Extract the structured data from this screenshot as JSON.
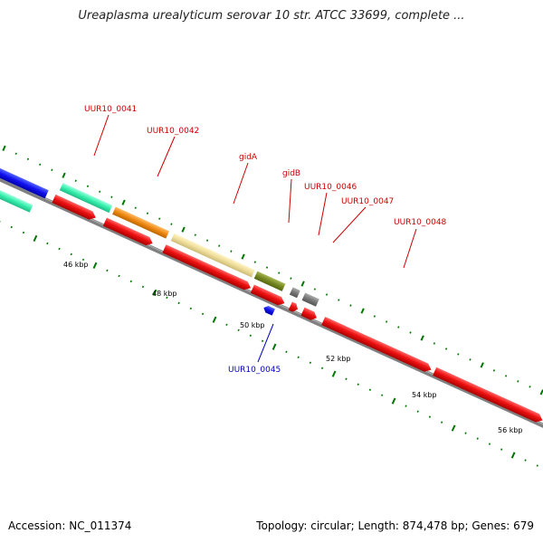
{
  "header": {
    "title": "Ureaplasma urealyticum serovar 10 str. ATCC 33699, complete ..."
  },
  "footer": {
    "accession": "Accession: NC_011374",
    "summary": "Topology: circular; Length: 874,478 bp; Genes: 679"
  },
  "colors": {
    "backbone": "#808080",
    "cds_forward": "#ee1111",
    "cds_reverse": "#1010ee",
    "teal": "#33eeaa",
    "orange": "#ee8811",
    "khaki": "#eedd99",
    "olive": "#778822",
    "gray": "#777777",
    "tick": "#007700",
    "label_red": "#cc0000",
    "label_blue": "#0000bb"
  },
  "scale_labels": [
    "46 kbp",
    "48 kbp",
    "50 kbp",
    "52 kbp",
    "54 kbp",
    "56 kbp"
  ],
  "gene_labels": [
    {
      "id": "uur10-0041",
      "text": "UUR10_0041",
      "color": "red"
    },
    {
      "id": "uur10-0042",
      "text": "UUR10_0042",
      "color": "red"
    },
    {
      "id": "gida",
      "text": "gidA",
      "color": "red"
    },
    {
      "id": "gidb",
      "text": "gidB",
      "color": "red"
    },
    {
      "id": "uur10-0046",
      "text": "UUR10_0046",
      "color": "red"
    },
    {
      "id": "uur10-0047",
      "text": "UUR10_0047",
      "color": "red"
    },
    {
      "id": "uur10-0048",
      "text": "UUR10_0048",
      "color": "red"
    },
    {
      "id": "uur10-0045",
      "text": "UUR10_0045",
      "color": "blue"
    }
  ]
}
